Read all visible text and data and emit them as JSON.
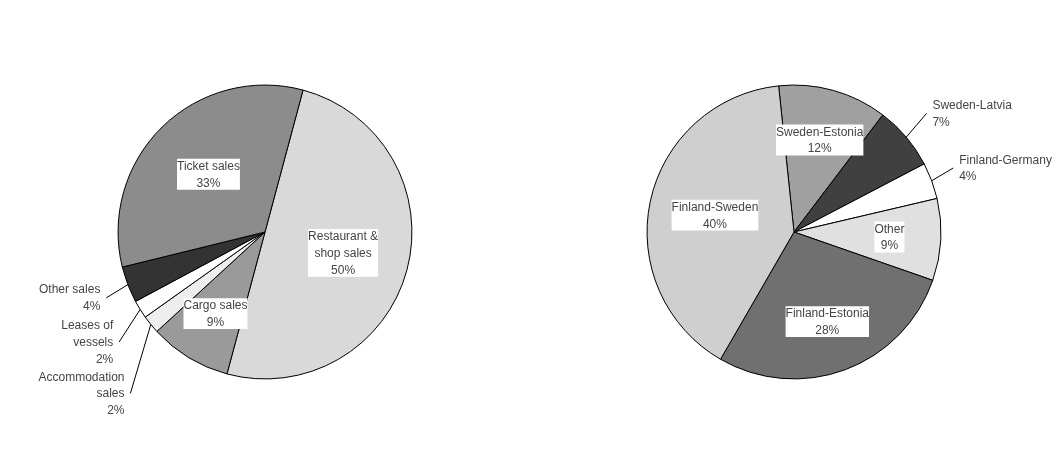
{
  "chart_data": [
    {
      "type": "pie",
      "categories": [
        "Restaurant & shop sales",
        "Cargo sales",
        "Accommodation sales",
        "Leases of vessels",
        "Other sales",
        "Ticket sales"
      ],
      "values": [
        50,
        9,
        2,
        2,
        4,
        33
      ],
      "value_labels": [
        "50%",
        "9%",
        "2%",
        "2%",
        "4%",
        "33%"
      ],
      "colors": [
        "#d9d9d9",
        "#9a9a9a",
        "#eeeeee",
        "#ffffff",
        "#333333",
        "#8c8c8c"
      ]
    },
    {
      "type": "pie",
      "categories": [
        "Sweden-Estonia",
        "Sweden-Latvia",
        "Finland-Germany",
        "Other",
        "Finland-Estonia",
        "Finland-Sweden"
      ],
      "values": [
        12,
        7,
        4,
        9,
        28,
        40
      ],
      "value_labels": [
        "12%",
        "7%",
        "4%",
        "9%",
        "28%",
        "40%"
      ],
      "colors": [
        "#a0a0a0",
        "#404040",
        "#ffffff",
        "#e0e0e0",
        "#707070",
        "#cfcfcf"
      ]
    }
  ]
}
